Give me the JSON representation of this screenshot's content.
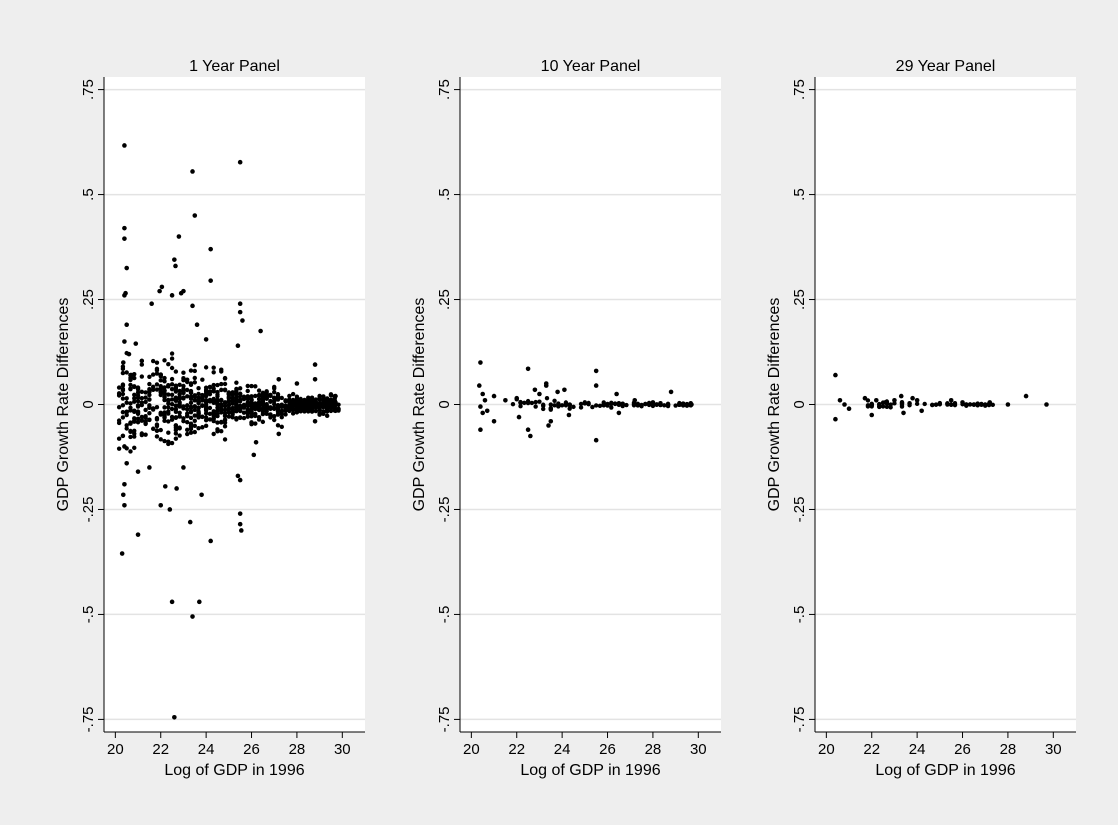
{
  "colors": {
    "outer_background": "#eeeeee",
    "plot_background": "#ffffff",
    "gridline": "#e3e3e3",
    "marker": "#000000"
  },
  "chart_data": [
    {
      "type": "scatter",
      "title": "1 Year Panel",
      "xlabel": "Log of GDP in 1996",
      "ylabel": "GDP Growth Rate Differences",
      "xlim": [
        19.5,
        31
      ],
      "ylim": [
        -0.78,
        0.78
      ],
      "xticks": [
        20,
        22,
        24,
        26,
        28,
        30
      ],
      "xtick_labels": [
        "20",
        "22",
        "24",
        "26",
        "28",
        "30"
      ],
      "yticks": [
        -0.75,
        -0.5,
        -0.25,
        0,
        0.25,
        0.5,
        0.75
      ],
      "ytick_labels": [
        "-.75",
        "-.5",
        "-.25",
        "0",
        ".25",
        ".5",
        ".75"
      ],
      "grid": true,
      "points": [
        [
          20.4,
          0.617
        ],
        [
          20.4,
          0.42
        ],
        [
          20.4,
          0.395
        ],
        [
          20.5,
          0.325
        ],
        [
          20.45,
          0.265
        ],
        [
          20.4,
          0.26
        ],
        [
          20.5,
          0.19
        ],
        [
          20.4,
          0.15
        ],
        [
          20.6,
          0.12
        ],
        [
          20.35,
          0.1
        ],
        [
          20.7,
          0.07
        ],
        [
          20.4,
          -0.1
        ],
        [
          20.5,
          -0.14
        ],
        [
          20.4,
          -0.19
        ],
        [
          20.35,
          -0.215
        ],
        [
          20.4,
          -0.24
        ],
        [
          20.3,
          -0.355
        ],
        [
          21.0,
          -0.31
        ],
        [
          20.9,
          0.145
        ],
        [
          21.0,
          -0.16
        ],
        [
          21.6,
          0.24
        ],
        [
          21.95,
          0.27
        ],
        [
          22.05,
          0.28
        ],
        [
          22.6,
          0.345
        ],
        [
          22.65,
          0.33
        ],
        [
          22.8,
          0.4
        ],
        [
          22.5,
          0.26
        ],
        [
          22.9,
          0.265
        ],
        [
          23.0,
          0.27
        ],
        [
          23.4,
          0.555
        ],
        [
          23.5,
          0.45
        ],
        [
          23.4,
          0.235
        ],
        [
          23.6,
          0.19
        ],
        [
          24.0,
          0.155
        ],
        [
          24.2,
          0.37
        ],
        [
          24.2,
          0.295
        ],
        [
          25.5,
          0.577
        ],
        [
          25.5,
          0.24
        ],
        [
          25.5,
          0.22
        ],
        [
          25.6,
          0.2
        ],
        [
          25.4,
          0.14
        ],
        [
          26.4,
          0.175
        ],
        [
          22.0,
          -0.24
        ],
        [
          22.2,
          -0.195
        ],
        [
          22.4,
          -0.25
        ],
        [
          22.7,
          -0.2
        ],
        [
          22.5,
          -0.47
        ],
        [
          23.4,
          -0.505
        ],
        [
          23.7,
          -0.47
        ],
        [
          23.3,
          -0.28
        ],
        [
          23.8,
          -0.215
        ],
        [
          24.2,
          -0.325
        ],
        [
          22.6,
          -0.745
        ],
        [
          25.5,
          -0.26
        ],
        [
          25.5,
          -0.285
        ],
        [
          25.55,
          -0.3
        ],
        [
          25.4,
          -0.17
        ],
        [
          25.5,
          -0.18
        ],
        [
          26.1,
          -0.12
        ],
        [
          26.2,
          -0.09
        ],
        [
          27.2,
          0.06
        ],
        [
          27.2,
          -0.07
        ],
        [
          28.0,
          0.05
        ],
        [
          28.8,
          0.095
        ],
        [
          28.8,
          0.06
        ],
        [
          28.8,
          -0.04
        ],
        [
          29.7,
          0.02
        ],
        [
          29.7,
          -0.015
        ],
        [
          29.7,
          0.005
        ],
        [
          29.7,
          0.0
        ],
        [
          21.5,
          -0.15
        ],
        [
          23.0,
          -0.15
        ]
      ],
      "cloud": {
        "x": [
          20.2,
          29.8
        ],
        "spread": [
          0.14,
          0.1,
          0.06,
          0.03
        ]
      }
    },
    {
      "type": "scatter",
      "title": "10 Year Panel",
      "xlabel": "Log of GDP in 1996",
      "ylabel": "GDP Growth Rate Differences",
      "xlim": [
        19.5,
        31
      ],
      "ylim": [
        -0.78,
        0.78
      ],
      "xticks": [
        20,
        22,
        24,
        26,
        28,
        30
      ],
      "xtick_labels": [
        "20",
        "22",
        "24",
        "26",
        "28",
        "30"
      ],
      "yticks": [
        -0.75,
        -0.5,
        -0.25,
        0,
        0.25,
        0.5,
        0.75
      ],
      "ytick_labels": [
        "-.75",
        "-.5",
        "-.25",
        "0",
        ".25",
        ".5",
        ".75"
      ],
      "grid": true,
      "points": [
        [
          20.4,
          0.1
        ],
        [
          20.35,
          0.045
        ],
        [
          20.5,
          0.025
        ],
        [
          20.6,
          0.01
        ],
        [
          20.4,
          -0.005
        ],
        [
          20.5,
          -0.02
        ],
        [
          20.4,
          -0.06
        ],
        [
          20.7,
          -0.015
        ],
        [
          21.0,
          0.02
        ],
        [
          21.0,
          -0.04
        ],
        [
          21.5,
          0.01
        ],
        [
          22.0,
          0.015
        ],
        [
          22.1,
          -0.03
        ],
        [
          22.5,
          0.085
        ],
        [
          22.5,
          -0.06
        ],
        [
          22.6,
          -0.075
        ],
        [
          22.8,
          0.035
        ],
        [
          23.0,
          0.025
        ],
        [
          23.3,
          0.05
        ],
        [
          23.3,
          0.045
        ],
        [
          23.4,
          -0.05
        ],
        [
          23.5,
          -0.04
        ],
        [
          23.8,
          0.03
        ],
        [
          24.1,
          0.035
        ],
        [
          24.3,
          -0.025
        ],
        [
          25.5,
          0.08
        ],
        [
          25.5,
          0.045
        ],
        [
          25.5,
          -0.085
        ],
        [
          26.4,
          0.025
        ],
        [
          26.5,
          -0.02
        ],
        [
          27.2,
          0.01
        ],
        [
          28.0,
          0.005
        ],
        [
          28.8,
          0.03
        ],
        [
          29.7,
          0.0
        ]
      ],
      "cloud": {
        "x": [
          21.8,
          29.7
        ],
        "spread": [
          0.022,
          0.016,
          0.01,
          0.006
        ]
      }
    },
    {
      "type": "scatter",
      "title": "29 Year Panel",
      "xlabel": "Log of GDP in 1996",
      "ylabel": "GDP Growth Rate Differences",
      "xlim": [
        19.5,
        31
      ],
      "ylim": [
        -0.78,
        0.78
      ],
      "xticks": [
        20,
        22,
        24,
        26,
        28,
        30
      ],
      "xtick_labels": [
        "20",
        "22",
        "24",
        "26",
        "28",
        "30"
      ],
      "yticks": [
        -0.75,
        -0.5,
        -0.25,
        0,
        0.25,
        0.5,
        0.75
      ],
      "ytick_labels": [
        "-.75",
        "-.5",
        "-.25",
        "0",
        ".25",
        ".5",
        ".75"
      ],
      "grid": true,
      "points": [
        [
          20.4,
          0.07
        ],
        [
          20.4,
          -0.035
        ],
        [
          20.6,
          0.01
        ],
        [
          20.8,
          0.0
        ],
        [
          21.0,
          -0.01
        ],
        [
          21.7,
          0.015
        ],
        [
          22.0,
          -0.025
        ],
        [
          22.2,
          0.01
        ],
        [
          22.6,
          0.005
        ],
        [
          23.0,
          0.01
        ],
        [
          23.3,
          0.02
        ],
        [
          23.4,
          -0.02
        ],
        [
          23.8,
          0.015
        ],
        [
          24.0,
          0.01
        ],
        [
          24.2,
          -0.015
        ],
        [
          25.5,
          0.01
        ],
        [
          26.0,
          0.005
        ],
        [
          26.5,
          0.0
        ],
        [
          27.2,
          0.005
        ],
        [
          28.0,
          0.0
        ],
        [
          28.8,
          0.02
        ],
        [
          29.7,
          0.0
        ]
      ],
      "cloud": {
        "x": [
          21.8,
          27.5
        ],
        "spread": [
          0.012,
          0.009,
          0.006,
          0.004
        ]
      }
    }
  ]
}
